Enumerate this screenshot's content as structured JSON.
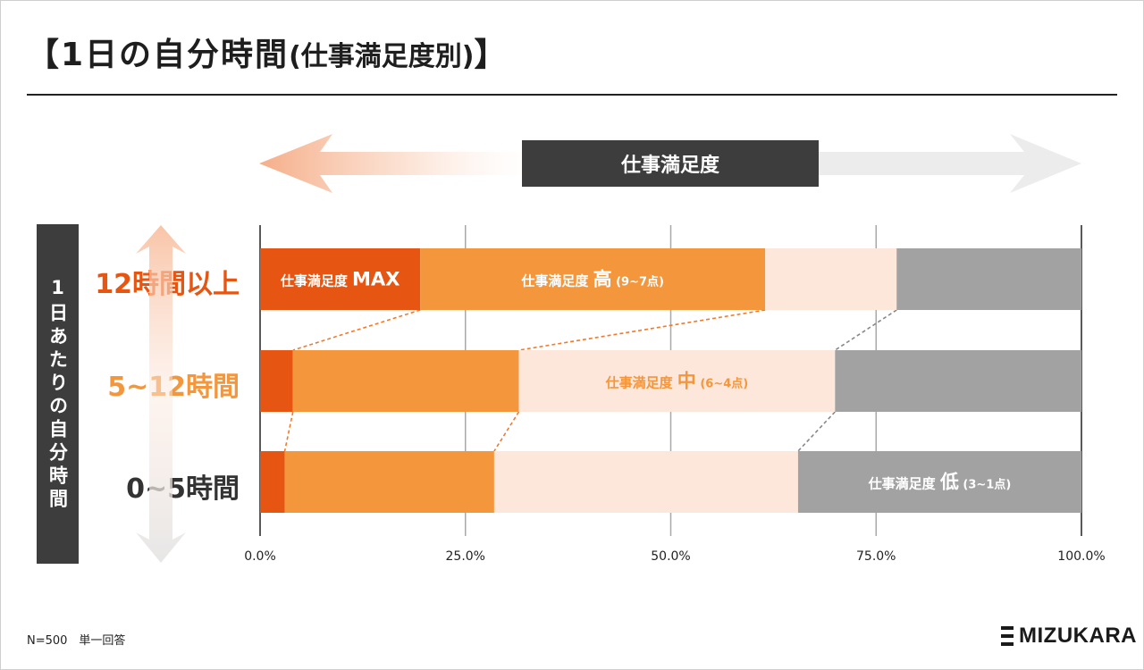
{
  "title": {
    "main": "【1日の自分時間",
    "sub": "(仕事満足度別)",
    "close": "】"
  },
  "header_arrow_label": "仕事満足度",
  "y_axis_label": "1日あたりの自分時間",
  "footnote": "N=500　単一回答",
  "logo": "MIZUKARA",
  "colors": {
    "max": "#e65511",
    "high": "#f4963c",
    "mid": "#fde6da",
    "low": "#a2a2a2",
    "label_cat1": "#e65511",
    "label_cat2": "#f4963c",
    "label_cat3": "#333333",
    "connector_orange": "#f07b2c",
    "connector_gray": "#888888",
    "grid": "#a8a8a8",
    "axis_box": "#3d3d3d"
  },
  "chart_data": {
    "type": "bar",
    "orientation": "horizontal",
    "stacked": "percent",
    "categories": [
      "12時間以上",
      "5~12時間",
      "0~5時間"
    ],
    "series": [
      {
        "name": "仕事満足度 MAX",
        "values": [
          19.5,
          4.0,
          3.0
        ]
      },
      {
        "name": "仕事満足度 高 (9~7点)",
        "values": [
          42.0,
          27.5,
          25.5
        ]
      },
      {
        "name": "仕事満足度 中 (6~4点)",
        "values": [
          16.0,
          38.5,
          37.0
        ]
      },
      {
        "name": "仕事満足度 低 (3~1点)",
        "values": [
          22.5,
          30.0,
          34.5
        ]
      }
    ],
    "xlim": [
      0,
      100
    ],
    "x_ticks": [
      "0.0%",
      "25.0%",
      "50.0%",
      "75.0%",
      "100.0%"
    ],
    "segment_labels": [
      {
        "series": 0,
        "category": 0,
        "prefix": "仕事満足度 ",
        "big": "MAX",
        "suffix": ""
      },
      {
        "series": 1,
        "category": 0,
        "prefix": "仕事満足度 ",
        "big": "高",
        "suffix": " (9~7点)"
      },
      {
        "series": 2,
        "category": 1,
        "prefix": "仕事満足度 ",
        "big": "中",
        "suffix": " (6~4点)"
      },
      {
        "series": 3,
        "category": 2,
        "prefix": "仕事満足度 ",
        "big": "低",
        "suffix": " (3~1点)"
      }
    ]
  }
}
